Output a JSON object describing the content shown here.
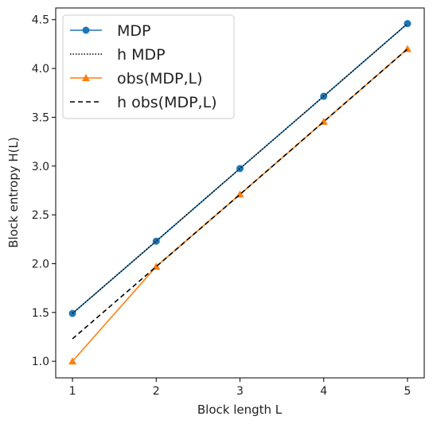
{
  "chart_data": {
    "type": "line",
    "title": "",
    "xlabel": "Block length L",
    "ylabel": "Block entropy H(L)",
    "xlim": [
      0.8,
      5.2
    ],
    "ylim": [
      0.83,
      4.62
    ],
    "xticks": [
      1,
      2,
      3,
      4,
      5
    ],
    "yticks": [
      1.0,
      1.5,
      2.0,
      2.5,
      3.0,
      3.5,
      4.0,
      4.5
    ],
    "x": [
      1,
      2,
      3,
      4,
      5
    ],
    "grid": false,
    "legend_position": "upper-left",
    "series": [
      {
        "name": "MDP",
        "values": [
          1.49,
          2.23,
          2.975,
          3.715,
          4.46
        ],
        "color": "#1f77b4",
        "linestyle": "solid",
        "marker": "circle"
      },
      {
        "name": "h MDP",
        "values": [
          1.49,
          2.232,
          2.974,
          3.716,
          4.458
        ],
        "color": "#000000",
        "linestyle": "dotted",
        "marker": "none"
      },
      {
        "name": "obs(MDP,L)",
        "values": [
          1.0,
          1.97,
          2.71,
          3.455,
          4.2
        ],
        "color": "#ff7f0e",
        "linestyle": "solid",
        "marker": "triangle"
      },
      {
        "name": "h obs(MDP,L)",
        "values": [
          1.23,
          1.97,
          2.71,
          3.455,
          4.2
        ],
        "color": "#000000",
        "linestyle": "dashed",
        "marker": "none"
      }
    ]
  }
}
